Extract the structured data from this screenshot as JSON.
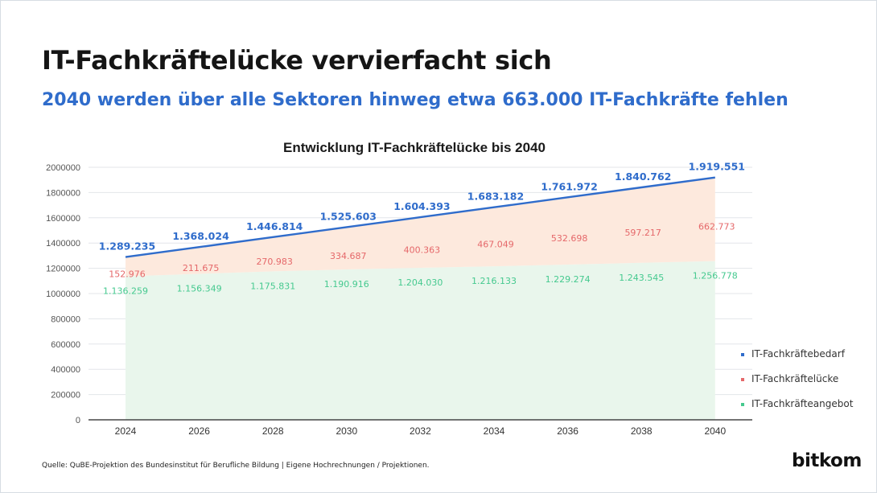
{
  "header": {
    "title": "IT-Fachkräftelücke vervierfacht sich",
    "subtitle": "2040 werden über alle Sektoren hinweg etwa 663.000 IT-Fachkräfte fehlen"
  },
  "footer": {
    "source": "Quelle: QuBE-Projektion des Bundesinstitut für Berufliche Bildung | Eigene Hochrechnungen / Projektionen.",
    "logo": "bitkom"
  },
  "colors": {
    "bedarf": "#2f6ccb",
    "luecke": "#e5686a",
    "angebot": "#45c98f",
    "luecke_fill": "#fde9dd",
    "angebot_fill": "#e9f6ec"
  },
  "chart_data": {
    "type": "area",
    "title": "Entwicklung IT-Fachkräftelücke bis 2040",
    "x": [
      "2024",
      "2026",
      "2028",
      "2030",
      "2032",
      "2034",
      "2036",
      "2038",
      "2040"
    ],
    "ylim": [
      0,
      2000000
    ],
    "yticks": [
      "0",
      "200000",
      "400000",
      "600000",
      "800000",
      "1000000",
      "1200000",
      "1400000",
      "1600000",
      "1800000",
      "2000000"
    ],
    "legend_position": "right",
    "series": [
      {
        "name": "IT-Fachkräftebedarf",
        "values": [
          1289235,
          1368024,
          1446814,
          1525603,
          1604393,
          1683182,
          1761972,
          1840762,
          1919551
        ],
        "labels": [
          "1.289.235",
          "1.368.024",
          "1.446.814",
          "1.525.603",
          "1.604.393",
          "1.683.182",
          "1.761.972",
          "1.840.762",
          "1.919.551"
        ]
      },
      {
        "name": "IT-Fachkräftelücke",
        "values": [
          152976,
          211675,
          270983,
          334687,
          400363,
          467049,
          532698,
          597217,
          662773
        ],
        "labels": [
          "152.976",
          "211.675",
          "270.983",
          "334.687",
          "400.363",
          "467.049",
          "532.698",
          "597.217",
          "662.773"
        ]
      },
      {
        "name": "IT-Fachkräfteangebot",
        "values": [
          1136259,
          1156349,
          1175831,
          1190916,
          1204030,
          1216133,
          1229274,
          1243545,
          1256778
        ],
        "labels": [
          "1.136.259",
          "1.156.349",
          "1.175.831",
          "1.190.916",
          "1.204.030",
          "1.216.133",
          "1.229.274",
          "1.243.545",
          "1.256.778"
        ]
      }
    ]
  }
}
